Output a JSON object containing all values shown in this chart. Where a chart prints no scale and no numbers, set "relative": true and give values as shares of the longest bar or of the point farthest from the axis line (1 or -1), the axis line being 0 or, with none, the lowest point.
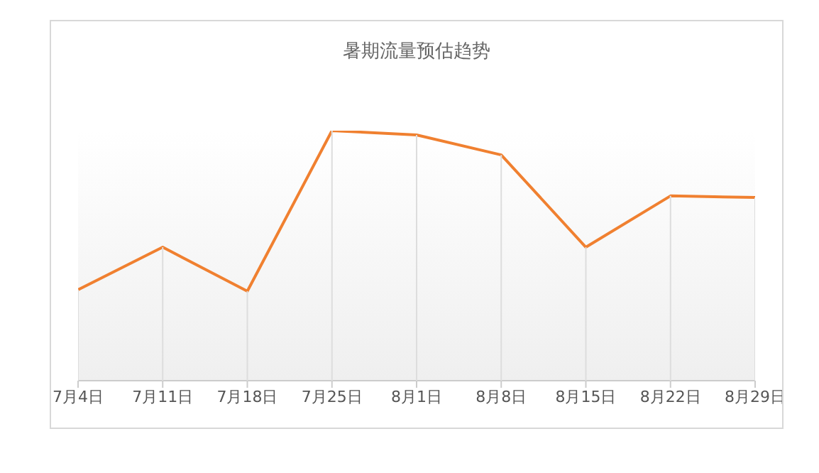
{
  "chart_data": {
    "type": "line",
    "title": "暑期流量预估趋势",
    "relative": true,
    "categories": [
      "7月4日",
      "7月11日",
      "7月18日",
      "7月25日",
      "8月1日",
      "8月8日",
      "8月15日",
      "8月22日",
      "8月29日"
    ],
    "values": [
      0.364,
      0.534,
      0.358,
      1,
      0.983,
      0.903,
      0.534,
      0.739,
      0.733
    ],
    "color": "#f08030",
    "grid": "x"
  }
}
